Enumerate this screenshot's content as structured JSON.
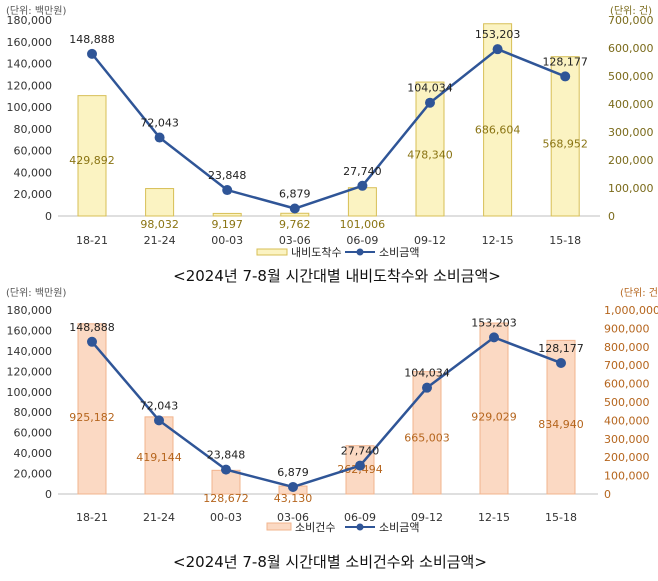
{
  "chart_data": [
    {
      "type": "bar",
      "combo": "bar+line",
      "categories": [
        "18-21",
        "21-24",
        "00-03",
        "03-06",
        "06-09",
        "09-12",
        "12-15",
        "15-18"
      ],
      "left_unit": "(단위: 백만원)",
      "right_unit": "(단위: 건)",
      "left_ylim": [
        0,
        180000
      ],
      "left_ticks": [
        "0",
        "20,000",
        "40,000",
        "60,000",
        "80,000",
        "100,000",
        "120,000",
        "140,000",
        "160,000",
        "180,000"
      ],
      "right_ylim": [
        0,
        700000
      ],
      "right_ticks": [
        "0",
        "100,000",
        "200,000",
        "300,000",
        "400,000",
        "500,000",
        "600,000",
        "700,000"
      ],
      "series": [
        {
          "name": "내비도착수",
          "kind": "bar",
          "axis": "right",
          "values": [
            429892,
            98032,
            9197,
            9762,
            101006,
            478340,
            686604,
            568952
          ],
          "labels": [
            "429,892",
            "98,032",
            "9,197",
            "9,762",
            "101,006",
            "478,340",
            "686,604",
            "568,952"
          ]
        },
        {
          "name": "소비금액",
          "kind": "line",
          "axis": "left",
          "values": [
            148888,
            72043,
            23848,
            6879,
            27740,
            104034,
            153203,
            128177
          ],
          "labels": [
            "148,888",
            "72,043",
            "23,848",
            "6,879",
            "27,740",
            "104,034",
            "153,203",
            "128,177"
          ]
        }
      ],
      "colors": {
        "bar_fill": "#fbf3c2",
        "bar_stroke": "#d7bf56",
        "line": "#2f5597"
      },
      "grid": false,
      "legend": "bottom",
      "caption": "<2024년 7-8월 시간대별 내비도착수와 소비금액>"
    },
    {
      "type": "bar",
      "combo": "bar+line",
      "categories": [
        "18-21",
        "21-24",
        "00-03",
        "03-06",
        "06-09",
        "09-12",
        "12-15",
        "15-18"
      ],
      "left_unit": "(단위: 백만원)",
      "right_unit": "(단위: 건",
      "left_ylim": [
        0,
        180000
      ],
      "left_ticks": [
        "0",
        "20,000",
        "40,000",
        "60,000",
        "80,000",
        "100,000",
        "120,000",
        "140,000",
        "160,000",
        "180,000"
      ],
      "right_ylim": [
        0,
        1000000
      ],
      "right_ticks": [
        "0",
        "100,000",
        "200,000",
        "300,000",
        "400,000",
        "500,000",
        "600,000",
        "700,000",
        "800,000",
        "900,000",
        "1,000,000"
      ],
      "series": [
        {
          "name": "소비건수",
          "kind": "bar",
          "axis": "right",
          "values": [
            925182,
            419144,
            128672,
            43130,
            262494,
            665003,
            929029,
            834940
          ],
          "labels": [
            "925,182",
            "419,144",
            "128,672",
            "43,130",
            "262,494",
            "665,003",
            "929,029",
            "834,940"
          ]
        },
        {
          "name": "소비금액",
          "kind": "line",
          "axis": "left",
          "values": [
            148888,
            72043,
            23848,
            6879,
            27740,
            104034,
            153203,
            128177
          ],
          "labels": [
            "148,888",
            "72,043",
            "23,848",
            "6,879",
            "27,740",
            "104,034",
            "153,203",
            "128,177"
          ]
        }
      ],
      "colors": {
        "bar_fill": "#fbd9c3",
        "bar_stroke": "#f2b48e",
        "line": "#2f5597"
      },
      "grid": false,
      "legend": "bottom",
      "caption": "<2024년 7-8월 시간대별 소비건수와 소비금액>"
    }
  ]
}
